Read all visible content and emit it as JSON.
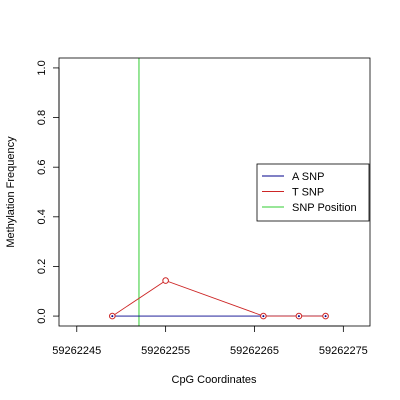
{
  "chart_data": {
    "type": "line",
    "title": "",
    "xlabel": "CpG Coordinates",
    "ylabel": "Methylation Frequency",
    "xlim": [
      59262243,
      59262278
    ],
    "ylim": [
      -0.04,
      1.04
    ],
    "x_ticks": [
      59262245,
      59262255,
      59262265,
      59262275
    ],
    "x_tick_labels": [
      "59262245",
      "59262255",
      "59262265",
      "59262275"
    ],
    "y_ticks": [
      0.0,
      0.2,
      0.4,
      0.6,
      0.8,
      1.0
    ],
    "y_tick_labels": [
      "0.0",
      "0.2",
      "0.4",
      "0.6",
      "0.8",
      "1.0"
    ],
    "grid": false,
    "legend_position": "right",
    "series": [
      {
        "name": "A SNP",
        "color": "#00008B",
        "marker": "none",
        "x": [
          59262249,
          59262255,
          59262266,
          59262270,
          59262273
        ],
        "y": [
          0.0,
          0.0,
          0.0,
          0.0,
          0.0
        ]
      },
      {
        "name": "T SNP",
        "color": "#CD2626",
        "marker": "open-circle",
        "x": [
          59262249,
          59262255,
          59262266,
          59262270,
          59262273
        ],
        "y": [
          0.0,
          0.143,
          0.0,
          0.0,
          0.0
        ]
      }
    ],
    "vlines": [
      {
        "name": "SNP Position",
        "color": "#32CD32",
        "x": 59262252
      }
    ]
  }
}
